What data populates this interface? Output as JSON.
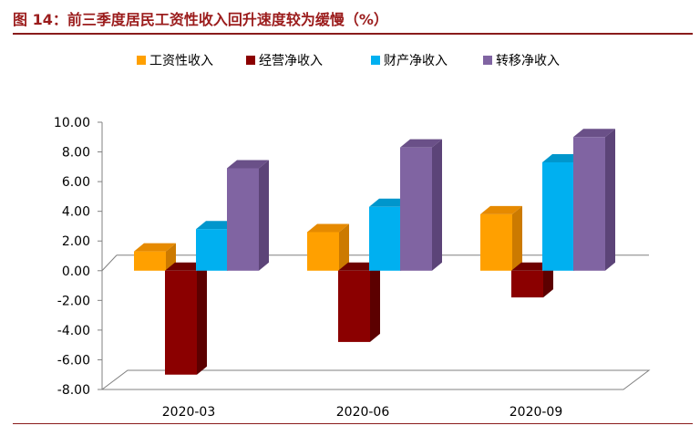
{
  "figure_title": "图 14：前三季度居民工资性收入回升速度较为缓慢（%）",
  "colors": {
    "title": "#9b1c1c",
    "rule": "#8a1c1c"
  },
  "chart_data": {
    "type": "bar",
    "title": "",
    "xlabel": "",
    "ylabel": "",
    "categories": [
      "2020-03",
      "2020-06",
      "2020-09"
    ],
    "series": [
      {
        "name": "工资性收入",
        "values": [
          1.3,
          2.6,
          3.8
        ],
        "color": "#ffa000",
        "side": "#cc7a00",
        "top": "#e68a00"
      },
      {
        "name": "经营净收入",
        "values": [
          -7.0,
          -4.8,
          -1.8
        ],
        "color": "#8b0000",
        "side": "#5c0000",
        "top": "#6e0000"
      },
      {
        "name": "财产净收入",
        "values": [
          2.8,
          4.3,
          7.3
        ],
        "color": "#00b0f0",
        "side": "#0086b8",
        "top": "#0096cc"
      },
      {
        "name": "转移净收入",
        "values": [
          6.9,
          8.3,
          9.0
        ],
        "color": "#8064a2",
        "side": "#5c4478",
        "top": "#6a5088"
      }
    ],
    "ylim": [
      -8,
      10
    ],
    "yticks": [
      "10.00",
      "8.00",
      "6.00",
      "4.00",
      "2.00",
      "0.00",
      "-2.00",
      "-4.00",
      "-6.00",
      "-8.00"
    ],
    "grid": false,
    "legend_position": "top",
    "three_d": true
  }
}
